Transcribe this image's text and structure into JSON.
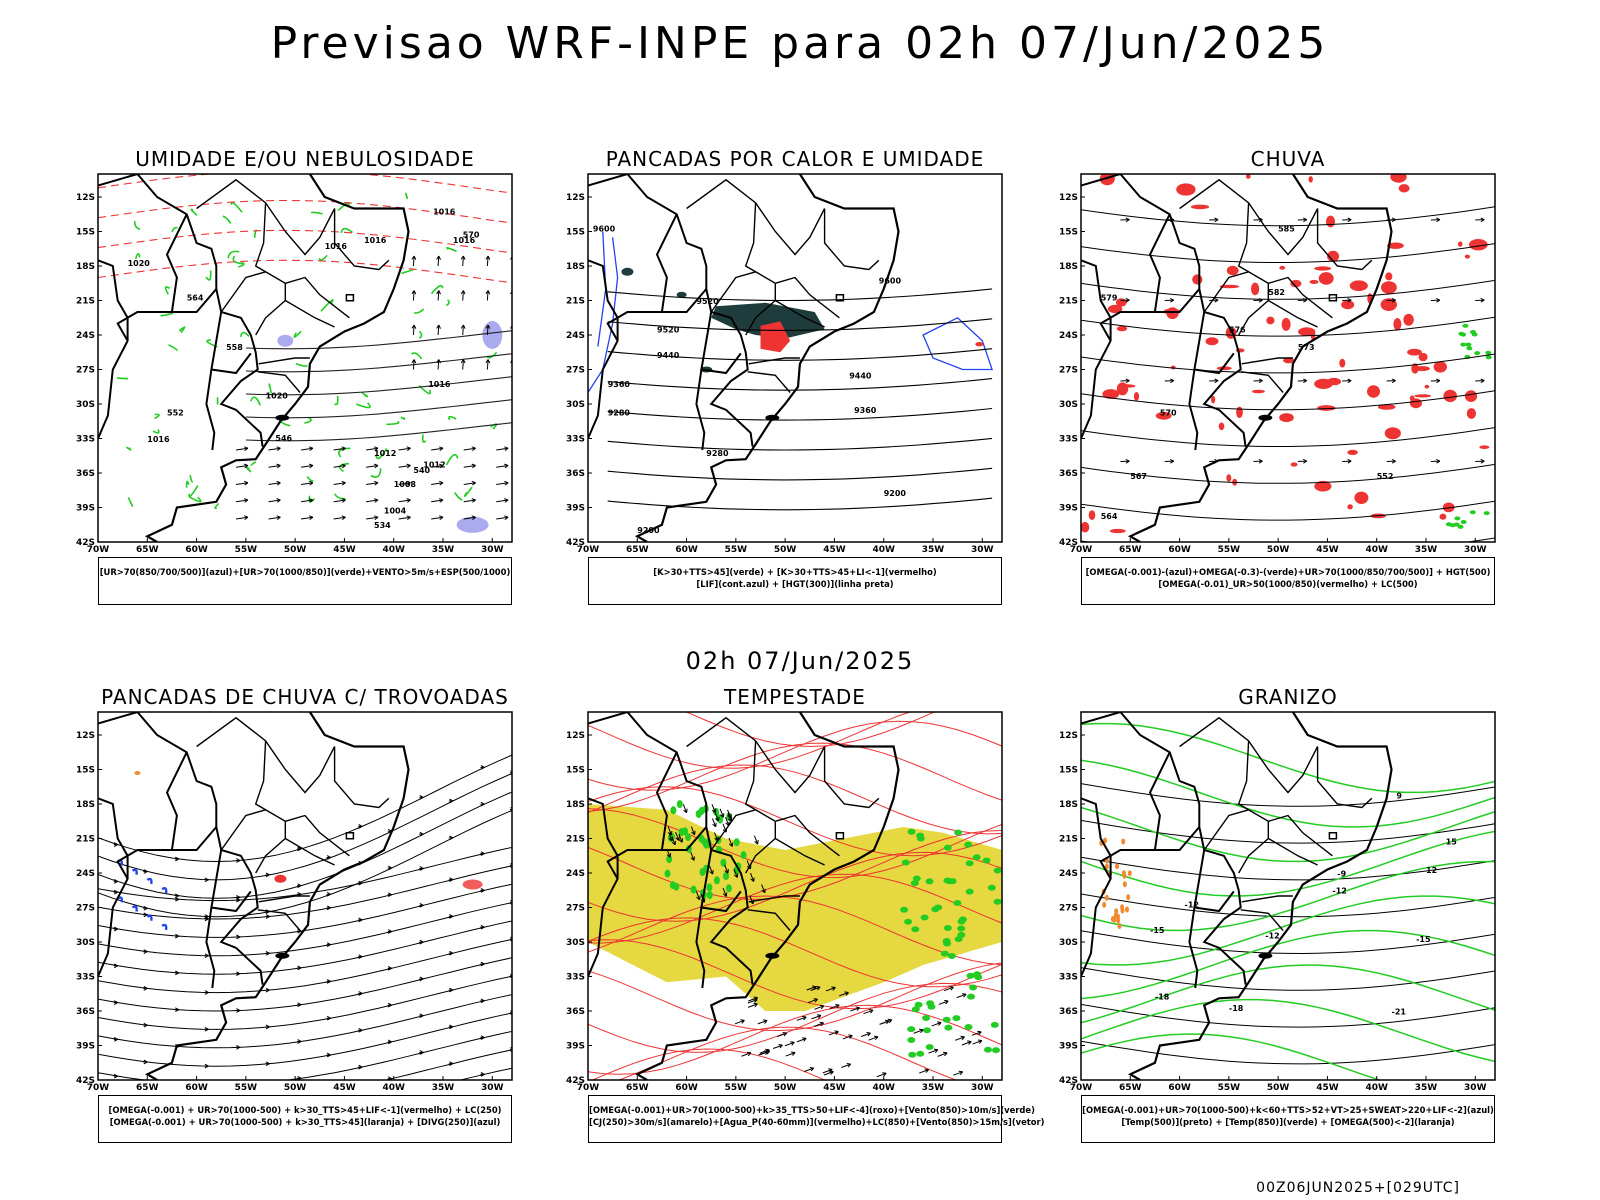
{
  "title": "Previsao WRF-INPE  para 02h 07/Jun/2025",
  "mid_time": "02h 07/Jun/2025",
  "footer": "00Z06JUN2025+[029UTC]",
  "axes": {
    "lat_labels": [
      "12S",
      "15S",
      "18S",
      "21S",
      "24S",
      "27S",
      "30S",
      "33S",
      "36S",
      "39S",
      "42S"
    ],
    "lon_labels": [
      "70W",
      "65W",
      "60W",
      "55W",
      "50W",
      "45W",
      "40W",
      "35W",
      "30W"
    ]
  },
  "panels": [
    {
      "id": "umidade",
      "title": "UMIDADE E/OU NEBULOSIDADE",
      "legend": [
        "[UR>70(850/700/500)](azul)+[UR>70(1000/850)](verde)+VENTO>5m/s+ESP(500/1000)"
      ],
      "contour_labels": [
        "1016",
        "1016",
        "1016",
        "1020",
        "1016",
        "570",
        "564",
        "558",
        "552",
        "546",
        "540",
        "534",
        "1020",
        "1016",
        "1012",
        "1008",
        "1004",
        "1012",
        "1016"
      ]
    },
    {
      "id": "pancadas-calor",
      "title": "PANCADAS POR CALOR E UMIDADE",
      "legend": [
        "[K>30+TTS>45](verde) + [K>30+TTS>45+LI<-1](vermelho)",
        "[LIF](cont.azul) + [HGT(300)](linha preta)"
      ],
      "contour_labels": [
        "9600",
        "9600",
        "9520",
        "9520",
        "9440",
        "9440",
        "9360",
        "9360",
        "9280",
        "9280",
        "9200",
        "9200"
      ]
    },
    {
      "id": "chuva",
      "title": "CHUVA",
      "legend": [
        "[OMEGA(-0.001)-(azul)+OMEGA(-0.3)-(verde)+UR>70(1000/850/700/500)] + HGT(500)",
        "[OMEGA(-0.01)_UR>50(1000/850)(vermelho) + LC(500)"
      ],
      "contour_labels": [
        "585",
        "582",
        "579",
        "576",
        "573",
        "570",
        "567",
        "564",
        "552"
      ]
    },
    {
      "id": "trovoadas",
      "title": "PANCADAS DE CHUVA C/ TROVOADAS",
      "legend": [
        "[OMEGA(-0.001) + UR>70(1000-500) + k>30_TTS>45+LIF<-1](vermelho) + LC(250)",
        "[OMEGA(-0.001) + UR>70(1000-500) + k>30_TTS>45](laranja) + [DIVG(250)](azul)"
      ],
      "contour_labels": []
    },
    {
      "id": "tempestade",
      "title": "TEMPESTADE",
      "legend": [
        "[OMEGA(-0.001)+UR>70(1000-500)+k>35_TTS>50+LIF<-4](roxo)+[Vento(850)>10m/s](verde)",
        "[CJ(250)>30m/s](amarelo)+[Agua_P(40-60mm)](vermelho)+LC(850)+[Vento(850)>15m/s](vetor)"
      ],
      "contour_labels": []
    },
    {
      "id": "granizo",
      "title": "GRANIZO",
      "legend": [
        "[OMEGA(-0.001)+UR>70(1000-500)+k<60+TTS>52+VT>25+SWEAT>220+LIF<-2](azul)",
        "[Temp(500)](preto) + [Temp(850)](verde) + [OMEGA(500)<-2](laranja)"
      ],
      "contour_labels": [
        "-9",
        "-12",
        "-12",
        "-12",
        "-15",
        "-15",
        "-18",
        "-18",
        "-21",
        "15",
        "12",
        "9"
      ]
    }
  ],
  "colors": {
    "green": "#22cc22",
    "red": "#ee3333",
    "blue": "#2244ee",
    "lavender": "#aaaaee",
    "yellow": "#e6d840",
    "darkteal": "#1e3c3c",
    "orange": "#f08a30"
  }
}
